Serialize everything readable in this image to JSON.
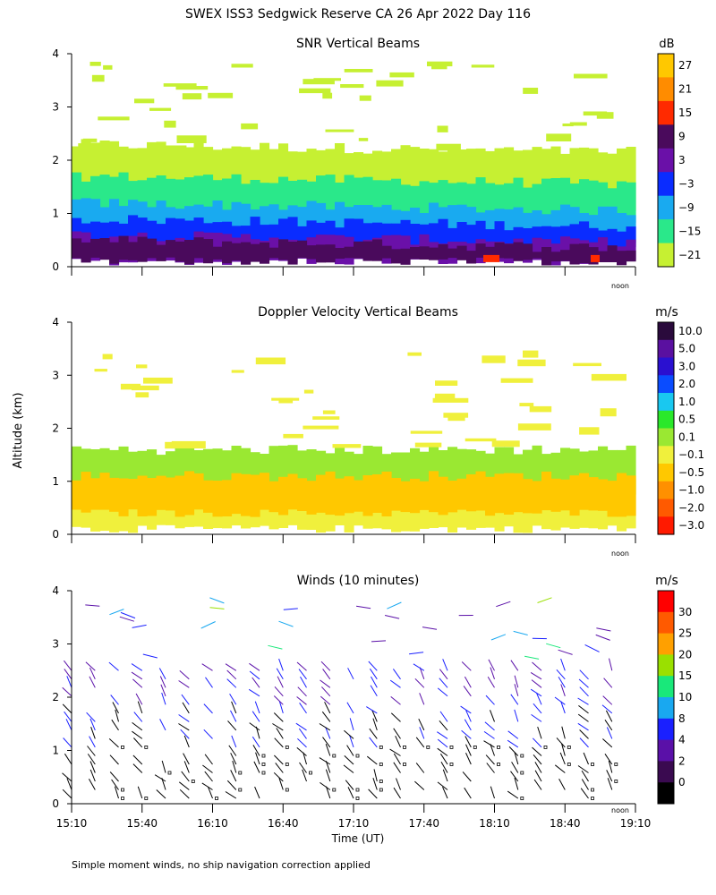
{
  "page_title": "SWEX ISS3 Sedgwick Reserve CA  26 Apr 2022 Day 116",
  "ylabel": "Altitude (km)",
  "xlabel": "Time (UT)",
  "footnote": "Simple moment winds, no ship navigation correction applied",
  "noon_label": "noon",
  "chart_data": [
    {
      "id": "snr",
      "type": "heatmap",
      "title": "SNR Vertical Beams",
      "units": "dB",
      "ylim": [
        0,
        4
      ],
      "yticks": [
        "0",
        "1",
        "2",
        "3",
        "4"
      ],
      "colorbar_labels": [
        "27",
        "21",
        "15",
        "9",
        "3",
        "−3",
        "−9",
        "−15",
        "−21"
      ],
      "colorbar_colors": [
        "#ffc800",
        "#ff8c00",
        "#ff2a00",
        "#4a0a5c",
        "#6a10a8",
        "#0a2cff",
        "#19aaf0",
        "#2ae88a",
        "#c6f032"
      ],
      "layers": [
        {
          "label": "−21",
          "color": "#c6f032",
          "y_range": [
            1.0,
            2.3
          ]
        },
        {
          "label": "−15",
          "color": "#2ae88a",
          "y_range": [
            0.9,
            1.7
          ]
        },
        {
          "label": "−9",
          "color": "#19aaf0",
          "y_range": [
            0.5,
            1.2
          ]
        },
        {
          "label": "−3",
          "color": "#0a2cff",
          "y_range": [
            0.3,
            0.9
          ]
        },
        {
          "label": "3",
          "color": "#6a10a8",
          "y_range": [
            0.1,
            0.6
          ]
        },
        {
          "label": "9",
          "color": "#4a0a5c",
          "y_range": [
            0.1,
            0.5
          ]
        }
      ]
    },
    {
      "id": "doppler",
      "type": "heatmap",
      "title": "Doppler Velocity Vertical Beams",
      "units": "m/s",
      "ylim": [
        0,
        4
      ],
      "yticks": [
        "0",
        "1",
        "2",
        "3",
        "4"
      ],
      "colorbar_labels": [
        "10.0",
        "5.0",
        "3.0",
        "2.0",
        "1.0",
        "0.5",
        "0.1",
        "−0.1",
        "−0.5",
        "−1.0",
        "−2.0",
        "−3.0"
      ],
      "colorbar_colors": [
        "#2a0a3c",
        "#5a10a0",
        "#2a10d0",
        "#0a4cff",
        "#19c8f0",
        "#2ae82a",
        "#9ae832",
        "#f0f03c",
        "#ffc800",
        "#ff9000",
        "#ff5a00",
        "#ff1a00"
      ],
      "layers": [
        {
          "label": "−0.1",
          "color": "#f0f03c",
          "y_range": [
            0.1,
            1.1
          ]
        },
        {
          "label": "0.1",
          "color": "#9ae832",
          "y_range": [
            0.8,
            1.6
          ]
        },
        {
          "label": "−0.5",
          "color": "#ffc800",
          "y_range": [
            0.4,
            1.1
          ]
        }
      ]
    },
    {
      "id": "winds",
      "type": "wind_barbs",
      "title": "Winds (10 minutes)",
      "units": "m/s",
      "ylim": [
        0,
        4
      ],
      "yticks": [
        "0",
        "1",
        "2",
        "3",
        "4"
      ],
      "xticks": [
        "15:10",
        "15:40",
        "16:10",
        "16:40",
        "17:10",
        "17:40",
        "18:10",
        "18:40",
        "19:10"
      ],
      "colorbar_labels": [
        "30",
        "25",
        "20",
        "15",
        "10",
        "8",
        "4",
        "2",
        "0"
      ],
      "colorbar_colors": [
        "#ff0000",
        "#ff5a00",
        "#ffa000",
        "#9ae000",
        "#19e87a",
        "#19a8f0",
        "#1a20ff",
        "#5a10a8",
        "#3a0a50",
        "#000000"
      ],
      "profile_times": [
        "15:10",
        "15:20",
        "15:30",
        "15:40",
        "15:50",
        "16:00",
        "16:10",
        "16:20",
        "16:30",
        "16:40",
        "16:50",
        "17:00",
        "17:10",
        "17:20",
        "17:30",
        "17:40",
        "17:50",
        "18:00",
        "18:10",
        "18:20",
        "18:30",
        "18:40",
        "18:50",
        "19:00"
      ]
    }
  ]
}
